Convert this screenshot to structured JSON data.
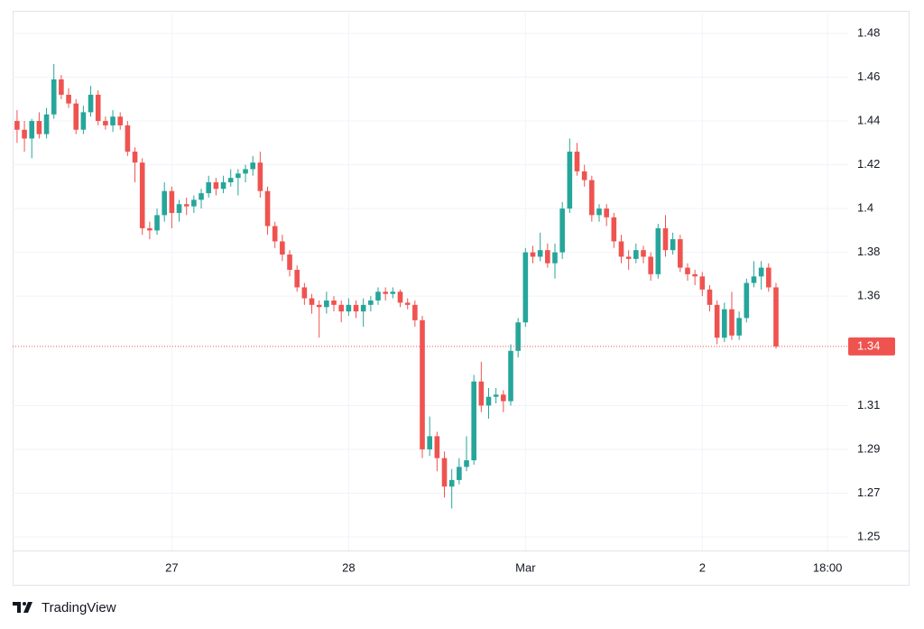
{
  "chart_data": {
    "type": "candlestick",
    "up_color": "#26a69a",
    "down_color": "#ef5350",
    "grid": true,
    "ylim": [
      1.2438,
      1.4895
    ],
    "yticks": [
      1.25,
      1.27,
      1.29,
      1.31,
      1.36,
      1.38,
      1.4,
      1.42,
      1.44,
      1.46,
      1.48
    ],
    "xlim": [
      -0.6,
      112.8
    ],
    "xticks": [
      {
        "value": 21,
        "label": "27"
      },
      {
        "value": 45,
        "label": "28"
      },
      {
        "value": 69,
        "label": "Mar"
      },
      {
        "value": 93,
        "label": "2"
      },
      {
        "value": 110,
        "label": "18:00"
      }
    ],
    "last_price": {
      "value": 1.337,
      "label": "1.34"
    },
    "ohlc": [
      [
        1.44,
        1.445,
        1.43,
        1.436
      ],
      [
        1.436,
        1.44,
        1.426,
        1.432
      ],
      [
        1.432,
        1.441,
        1.423,
        1.44
      ],
      [
        1.44,
        1.444,
        1.432,
        1.434
      ],
      [
        1.434,
        1.446,
        1.432,
        1.443
      ],
      [
        1.443,
        1.466,
        1.441,
        1.459
      ],
      [
        1.459,
        1.461,
        1.45,
        1.452
      ],
      [
        1.452,
        1.455,
        1.446,
        1.448
      ],
      [
        1.448,
        1.45,
        1.434,
        1.436
      ],
      [
        1.436,
        1.447,
        1.434,
        1.444
      ],
      [
        1.444,
        1.456,
        1.442,
        1.452
      ],
      [
        1.452,
        1.454,
        1.438,
        1.44
      ],
      [
        1.44,
        1.442,
        1.436,
        1.438
      ],
      [
        1.438,
        1.445,
        1.435,
        1.442
      ],
      [
        1.442,
        1.444,
        1.436,
        1.438
      ],
      [
        1.438,
        1.44,
        1.424,
        1.426
      ],
      [
        1.426,
        1.428,
        1.412,
        1.421
      ],
      [
        1.421,
        1.423,
        1.388,
        1.391
      ],
      [
        1.391,
        1.394,
        1.386,
        1.39
      ],
      [
        1.39,
        1.4,
        1.388,
        1.397
      ],
      [
        1.397,
        1.412,
        1.394,
        1.408
      ],
      [
        1.408,
        1.41,
        1.391,
        1.398
      ],
      [
        1.398,
        1.404,
        1.394,
        1.402
      ],
      [
        1.402,
        1.405,
        1.397,
        1.401
      ],
      [
        1.401,
        1.406,
        1.398,
        1.404
      ],
      [
        1.404,
        1.409,
        1.4,
        1.407
      ],
      [
        1.407,
        1.415,
        1.405,
        1.412
      ],
      [
        1.412,
        1.414,
        1.406,
        1.409
      ],
      [
        1.409,
        1.415,
        1.407,
        1.412
      ],
      [
        1.412,
        1.418,
        1.41,
        1.414
      ],
      [
        1.414,
        1.418,
        1.406,
        1.416
      ],
      [
        1.416,
        1.42,
        1.412,
        1.418
      ],
      [
        1.418,
        1.424,
        1.415,
        1.421
      ],
      [
        1.421,
        1.426,
        1.405,
        1.408
      ],
      [
        1.408,
        1.41,
        1.388,
        1.392
      ],
      [
        1.392,
        1.394,
        1.382,
        1.385
      ],
      [
        1.385,
        1.388,
        1.376,
        1.379
      ],
      [
        1.379,
        1.381,
        1.369,
        1.372
      ],
      [
        1.372,
        1.374,
        1.362,
        1.364
      ],
      [
        1.364,
        1.366,
        1.356,
        1.359
      ],
      [
        1.359,
        1.361,
        1.352,
        1.356
      ],
      [
        1.356,
        1.358,
        1.341,
        1.355
      ],
      [
        1.355,
        1.362,
        1.352,
        1.358
      ],
      [
        1.358,
        1.36,
        1.353,
        1.356
      ],
      [
        1.356,
        1.358,
        1.348,
        1.353
      ],
      [
        1.353,
        1.359,
        1.351,
        1.356
      ],
      [
        1.356,
        1.358,
        1.35,
        1.353
      ],
      [
        1.353,
        1.359,
        1.346,
        1.356
      ],
      [
        1.356,
        1.36,
        1.353,
        1.358
      ],
      [
        1.358,
        1.364,
        1.356,
        1.362
      ],
      [
        1.362,
        1.364,
        1.358,
        1.361
      ],
      [
        1.361,
        1.364,
        1.359,
        1.362
      ],
      [
        1.362,
        1.363,
        1.355,
        1.357
      ],
      [
        1.357,
        1.359,
        1.354,
        1.356
      ],
      [
        1.356,
        1.358,
        1.346,
        1.349
      ],
      [
        1.349,
        1.351,
        1.286,
        1.29
      ],
      [
        1.29,
        1.305,
        1.287,
        1.296
      ],
      [
        1.296,
        1.298,
        1.28,
        1.286
      ],
      [
        1.286,
        1.289,
        1.268,
        1.273
      ],
      [
        1.273,
        1.281,
        1.263,
        1.276
      ],
      [
        1.276,
        1.286,
        1.274,
        1.282
      ],
      [
        1.282,
        1.296,
        1.28,
        1.285
      ],
      [
        1.285,
        1.324,
        1.283,
        1.321
      ],
      [
        1.321,
        1.33,
        1.307,
        1.31
      ],
      [
        1.31,
        1.318,
        1.304,
        1.314
      ],
      [
        1.314,
        1.318,
        1.311,
        1.315
      ],
      [
        1.315,
        1.317,
        1.307,
        1.312
      ],
      [
        1.312,
        1.338,
        1.31,
        1.335
      ],
      [
        1.335,
        1.35,
        1.332,
        1.348
      ],
      [
        1.348,
        1.382,
        1.346,
        1.38
      ],
      [
        1.38,
        1.383,
        1.375,
        1.378
      ],
      [
        1.378,
        1.389,
        1.376,
        1.381
      ],
      [
        1.381,
        1.384,
        1.373,
        1.375
      ],
      [
        1.375,
        1.384,
        1.368,
        1.38
      ],
      [
        1.38,
        1.403,
        1.377,
        1.4
      ],
      [
        1.4,
        1.432,
        1.398,
        1.426
      ],
      [
        1.426,
        1.43,
        1.415,
        1.417
      ],
      [
        1.417,
        1.42,
        1.41,
        1.413
      ],
      [
        1.413,
        1.415,
        1.394,
        1.397
      ],
      [
        1.397,
        1.402,
        1.394,
        1.4
      ],
      [
        1.4,
        1.402,
        1.392,
        1.396
      ],
      [
        1.396,
        1.398,
        1.382,
        1.385
      ],
      [
        1.385,
        1.388,
        1.375,
        1.378
      ],
      [
        1.378,
        1.381,
        1.372,
        1.377
      ],
      [
        1.377,
        1.384,
        1.375,
        1.381
      ],
      [
        1.381,
        1.383,
        1.375,
        1.378
      ],
      [
        1.378,
        1.38,
        1.367,
        1.37
      ],
      [
        1.37,
        1.393,
        1.368,
        1.391
      ],
      [
        1.391,
        1.397,
        1.378,
        1.381
      ],
      [
        1.381,
        1.389,
        1.379,
        1.386
      ],
      [
        1.386,
        1.388,
        1.371,
        1.373
      ],
      [
        1.373,
        1.375,
        1.367,
        1.37
      ],
      [
        1.37,
        1.372,
        1.365,
        1.369
      ],
      [
        1.369,
        1.371,
        1.36,
        1.363
      ],
      [
        1.363,
        1.365,
        1.353,
        1.356
      ],
      [
        1.356,
        1.358,
        1.338,
        1.341
      ],
      [
        1.341,
        1.357,
        1.339,
        1.354
      ],
      [
        1.354,
        1.362,
        1.34,
        1.342
      ],
      [
        1.342,
        1.353,
        1.34,
        1.35
      ],
      [
        1.35,
        1.368,
        1.348,
        1.366
      ],
      [
        1.366,
        1.376,
        1.364,
        1.369
      ],
      [
        1.369,
        1.376,
        1.363,
        1.373
      ],
      [
        1.373,
        1.375,
        1.362,
        1.364
      ],
      [
        1.364,
        1.366,
        1.336,
        1.337
      ]
    ]
  },
  "brand": "TradingView"
}
